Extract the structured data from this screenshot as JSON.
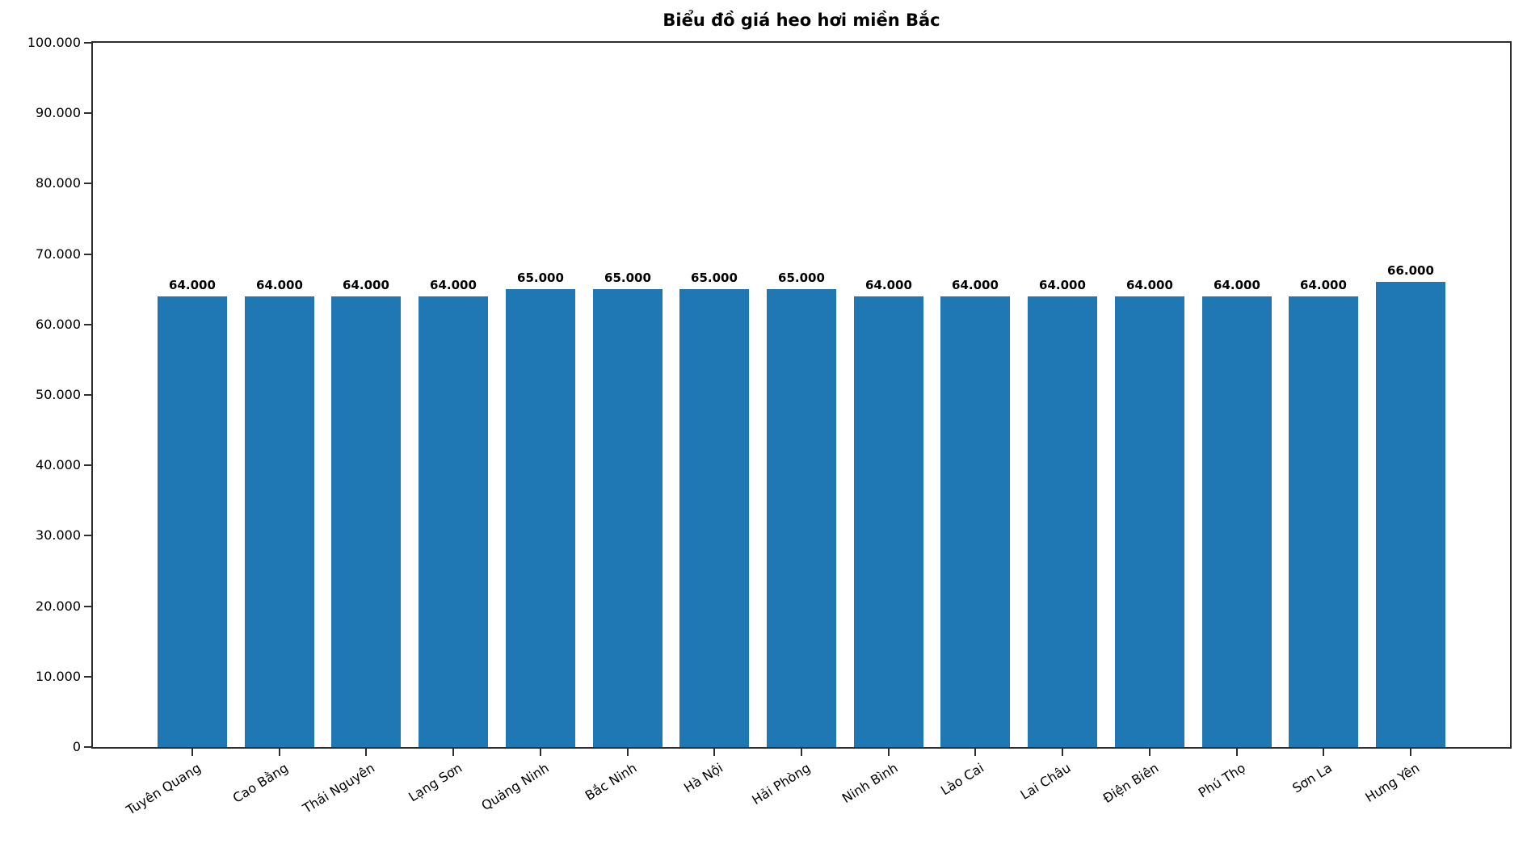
{
  "title": "Biểu đồ giá heo hơi miền Bắc",
  "colors": {
    "bar": "#1f77b4",
    "spine": "#2e2e2e",
    "text": "#000000",
    "background": "#ffffff"
  },
  "chart_data": {
    "type": "bar",
    "title": "Biểu đồ giá heo hơi miền Bắc",
    "xlabel": "",
    "ylabel": "",
    "categories": [
      "Tuyên Quang",
      "Cao Bằng",
      "Thái Nguyên",
      "Lạng Sơn",
      "Quảng Ninh",
      "Bắc Ninh",
      "Hà Nội",
      "Hải Phòng",
      "Ninh Bình",
      "Lào Cai",
      "Lai Châu",
      "Điện Biên",
      "Phú Thọ",
      "Sơn La",
      "Hưng Yên"
    ],
    "values": [
      64000,
      64000,
      64000,
      64000,
      65000,
      65000,
      65000,
      65000,
      64000,
      64000,
      64000,
      64000,
      64000,
      64000,
      66000
    ],
    "bar_labels": [
      "64.000",
      "64.000",
      "64.000",
      "64.000",
      "65.000",
      "65.000",
      "65.000",
      "65.000",
      "64.000",
      "64.000",
      "64.000",
      "64.000",
      "64.000",
      "64.000",
      "66.000"
    ],
    "ylim": [
      0,
      100000
    ],
    "ytick_interval": 10000,
    "ytick_labels": [
      "0",
      "10.000",
      "20.000",
      "30.000",
      "40.000",
      "50.000",
      "60.000",
      "70.000",
      "80.000",
      "90.000",
      "100.000"
    ],
    "grid": false,
    "legend": "none",
    "bar_color": "#1f77b4",
    "xtick_rotation_deg": -32
  }
}
